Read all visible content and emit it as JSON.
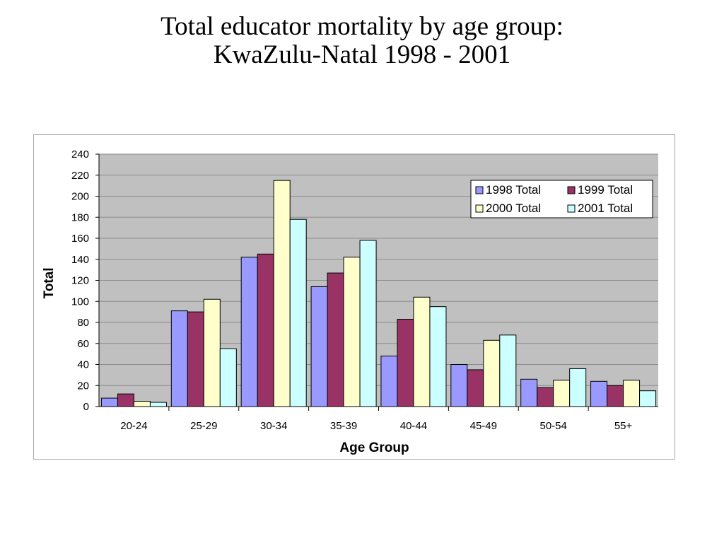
{
  "page": {
    "title_line1": "Total educator mortality by age group:",
    "title_line2": "KwaZulu-Natal 1998 - 2001"
  },
  "colors": {
    "plot_bg": "#c0c0c0",
    "gridline": "#8c8c8c",
    "series": [
      "#9999ff",
      "#993366",
      "#ffffcc",
      "#ccffff"
    ]
  },
  "chart_data": {
    "type": "bar",
    "title": "Total educator mortality by age group: KwaZulu-Natal 1998 - 2001",
    "xlabel": "Age Group",
    "ylabel": "Total",
    "ylim": [
      0,
      240
    ],
    "yticks": [
      0,
      20,
      40,
      60,
      80,
      100,
      120,
      140,
      160,
      180,
      200,
      220,
      240
    ],
    "grid": true,
    "legend_position": "top-right",
    "categories": [
      "20-24",
      "25-29",
      "30-34",
      "35-39",
      "40-44",
      "45-49",
      "50-54",
      "55+"
    ],
    "series": [
      {
        "name": "1998 Total",
        "values": [
          8,
          91,
          142,
          114,
          48,
          40,
          26,
          24
        ]
      },
      {
        "name": "1999 Total",
        "values": [
          12,
          90,
          145,
          127,
          83,
          35,
          18,
          20
        ]
      },
      {
        "name": "2000 Total",
        "values": [
          5,
          102,
          215,
          142,
          104,
          63,
          25,
          25
        ]
      },
      {
        "name": "2001 Total",
        "values": [
          4,
          55,
          178,
          158,
          95,
          68,
          36,
          15
        ]
      }
    ]
  }
}
